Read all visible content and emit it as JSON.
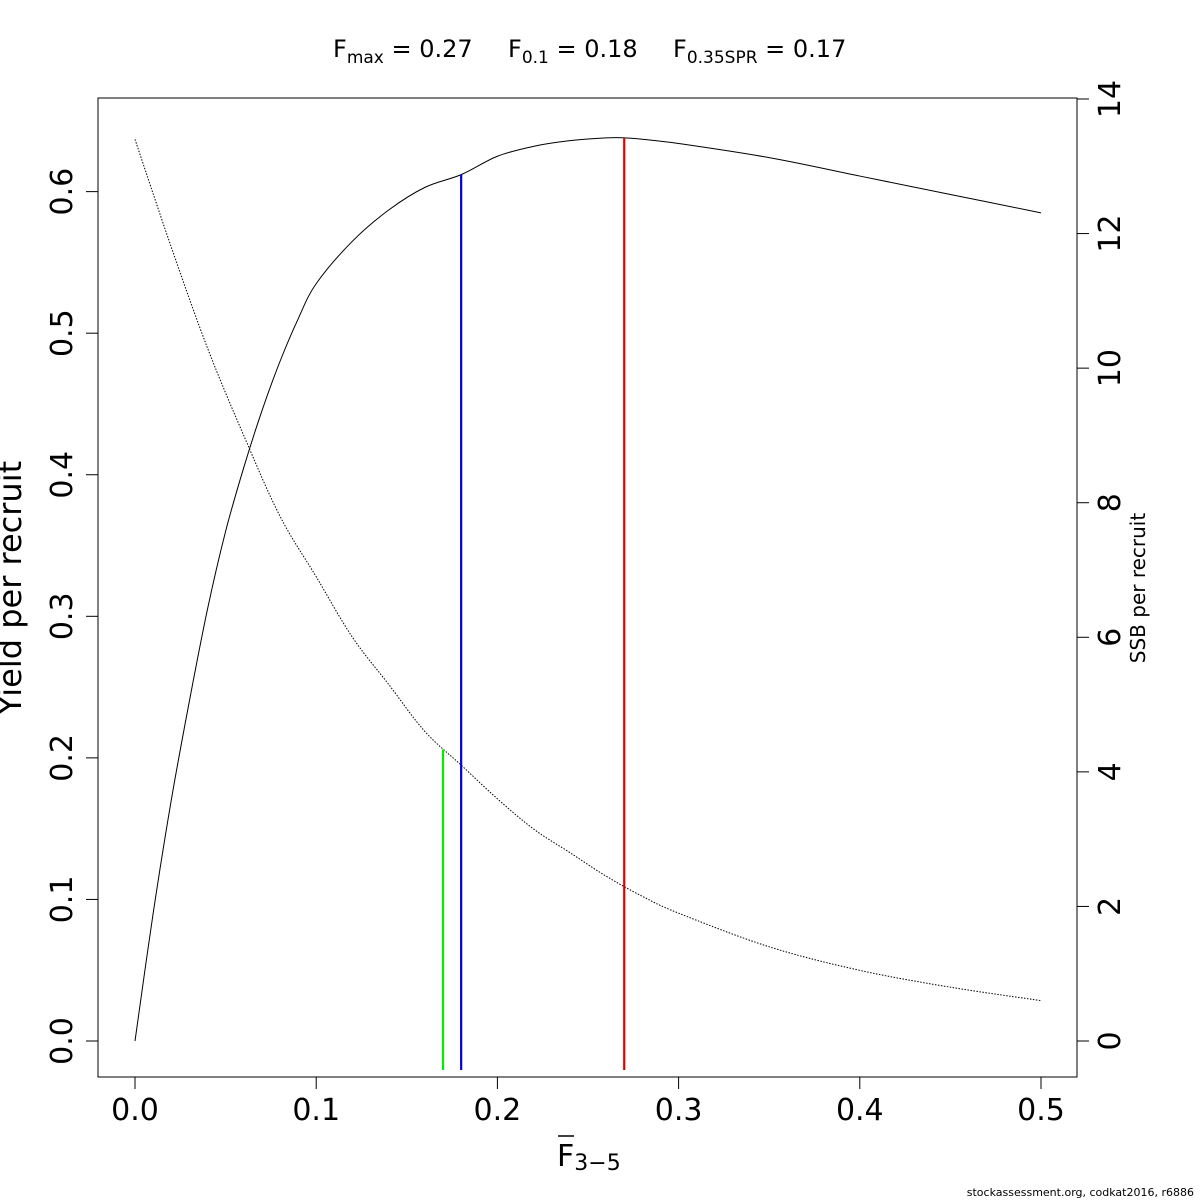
{
  "title": {
    "fmax": {
      "main": "F",
      "sub": "max",
      "value": " = 0.27"
    },
    "f01": {
      "main": "F",
      "sub": "0.1",
      "value": " = 0.18"
    },
    "fspr": {
      "main": "F",
      "sub": "0.35SPR",
      "value": " = 0.17"
    }
  },
  "footer": "stockassessment.org, codkat2016, r6886",
  "chart_data": {
    "type": "line",
    "title": "",
    "xlabel": {
      "main": "F",
      "sub": "3−5",
      "overbar": true
    },
    "ylabel": "Yield per recruit",
    "ylabel_right": "SSB per recruit",
    "xlim": [
      0,
      0.5
    ],
    "ylim": [
      0,
      0.64
    ],
    "ylim_right": [
      0,
      13.4
    ],
    "x_ticks": [
      0.0,
      0.1,
      0.2,
      0.3,
      0.4,
      0.5
    ],
    "x_tick_labels": [
      "0.0",
      "0.1",
      "0.2",
      "0.3",
      "0.4",
      "0.5"
    ],
    "y_ticks": [
      0.0,
      0.1,
      0.2,
      0.3,
      0.4,
      0.5,
      0.6
    ],
    "y_tick_labels": [
      "0.0",
      "0.1",
      "0.2",
      "0.3",
      "0.4",
      "0.5",
      "0.6"
    ],
    "y_right_ticks": [
      0,
      2,
      4,
      6,
      8,
      10,
      12,
      14
    ],
    "y_right_tick_labels": [
      "0",
      "2",
      "4",
      "6",
      "8",
      "10",
      "12",
      "14"
    ],
    "grid": false,
    "series": [
      {
        "axis": "left",
        "style": "solid",
        "x": [
          0.0,
          0.01,
          0.02,
          0.03,
          0.04,
          0.05,
          0.06,
          0.07,
          0.08,
          0.09,
          0.1,
          0.12,
          0.14,
          0.16,
          0.18,
          0.2,
          0.22,
          0.24,
          0.26,
          0.27,
          0.28,
          0.3,
          0.35,
          0.4,
          0.45,
          0.5
        ],
        "values": [
          0.0,
          0.09,
          0.17,
          0.24,
          0.305,
          0.36,
          0.405,
          0.445,
          0.48,
          0.51,
          0.535,
          0.565,
          0.587,
          0.603,
          0.612,
          0.625,
          0.632,
          0.636,
          0.638,
          0.638,
          0.637,
          0.634,
          0.624,
          0.611,
          0.598,
          0.585
        ]
      },
      {
        "axis": "right",
        "style": "dotted",
        "x": [
          0.0,
          0.02,
          0.04,
          0.06,
          0.08,
          0.1,
          0.12,
          0.14,
          0.16,
          0.18,
          0.2,
          0.22,
          0.24,
          0.26,
          0.28,
          0.3,
          0.35,
          0.4,
          0.45,
          0.5
        ],
        "values": [
          13.4,
          11.8,
          10.3,
          9.0,
          7.8,
          6.9,
          6.0,
          5.3,
          4.6,
          4.1,
          3.6,
          3.15,
          2.8,
          2.45,
          2.15,
          1.9,
          1.4,
          1.05,
          0.8,
          0.6
        ]
      }
    ],
    "reference_lines": [
      {
        "x": 0.27,
        "color": "#e00000",
        "y_top": 0.638
      },
      {
        "x": 0.18,
        "color": "#0000dd",
        "y_top": 0.612
      },
      {
        "x": 0.17,
        "color": "#00ee00",
        "y_top": 0.206
      }
    ]
  }
}
